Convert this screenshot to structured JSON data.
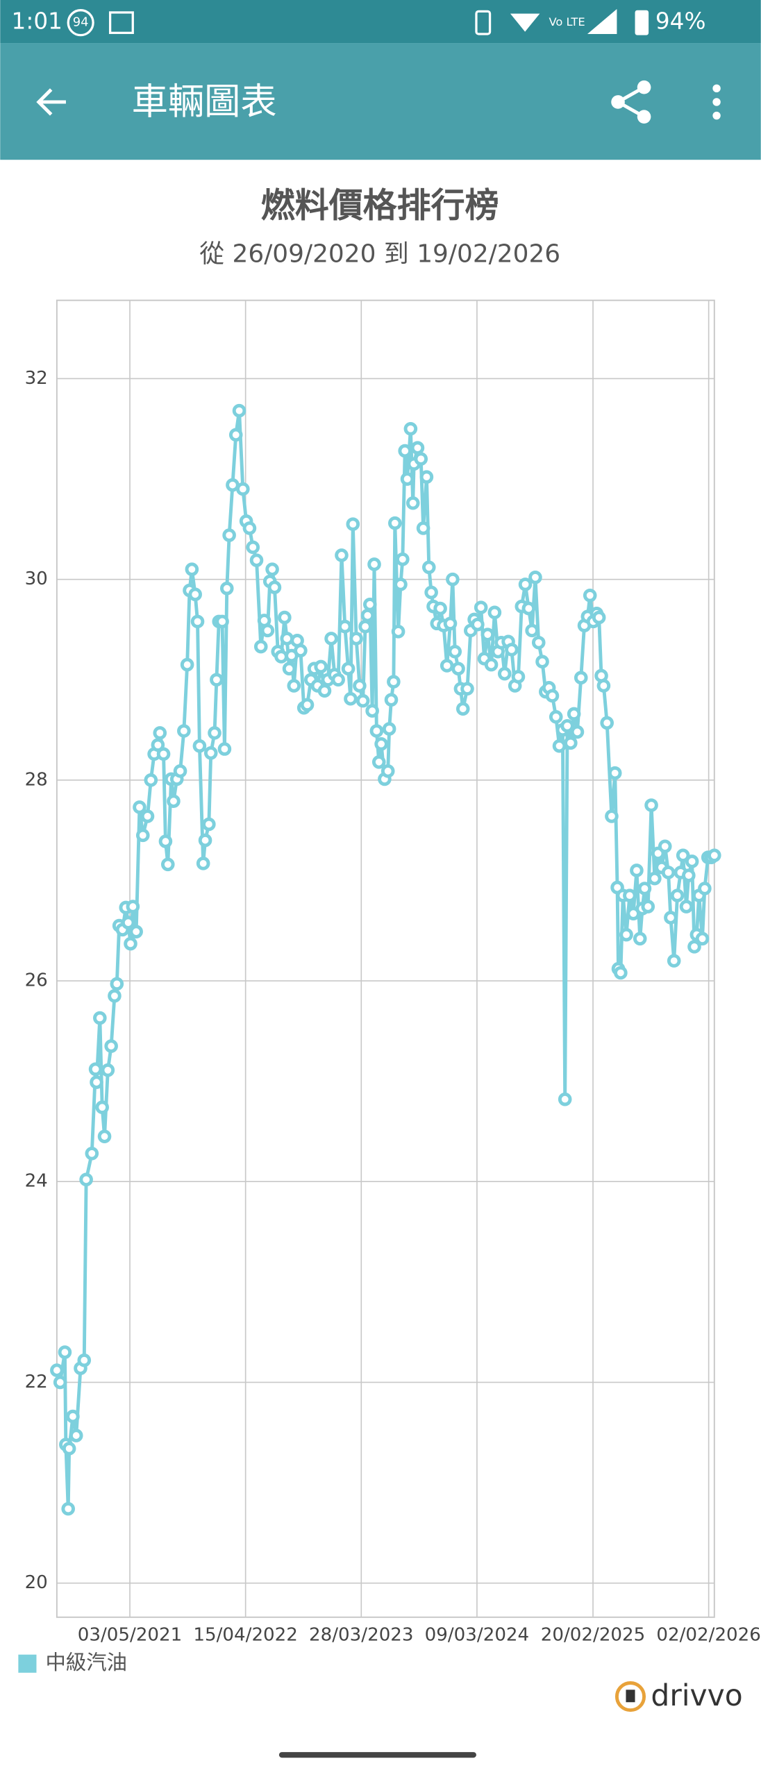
{
  "status_bar": {
    "time": "1:01",
    "badge": "94",
    "network": "Vo LTE",
    "battery": "94%"
  },
  "app_bar": {
    "title": "車輛圖表"
  },
  "brand": "drivvo",
  "chart_data": {
    "type": "line",
    "title": "燃料價格排行榜",
    "subtitle": "從 26/09/2020 到 19/02/2026",
    "x": [
      "26/09/2020",
      "06/10/2020",
      "20/10/2020",
      "23/10/2020",
      "30/10/2020",
      "02/11/2020",
      "13/11/2020",
      "23/11/2020",
      "06/12/2020",
      "17/12/2020",
      "23/12/2020",
      "09/01/2021",
      "20/01/2021",
      "23/01/2021",
      "02/02/2021",
      "09/02/2021",
      "16/02/2021",
      "26/02/2021",
      "08/03/2021",
      "18/03/2021",
      "25/03/2021",
      "01/04/2021",
      "11/04/2021",
      "21/04/2021",
      "28/04/2021",
      "05/05/2021",
      "12/05/2021",
      "22/05/2021",
      "01/06/2021",
      "11/06/2021",
      "25/06/2021",
      "05/07/2021",
      "15/07/2021",
      "26/07/2021",
      "01/08/2021",
      "12/08/2021",
      "18/08/2021",
      "25/08/2021",
      "04/09/2021",
      "11/09/2021",
      "21/09/2021",
      "01/10/2021",
      "12/10/2021",
      "22/10/2021",
      "29/10/2021",
      "05/11/2021",
      "15/11/2021",
      "22/11/2021",
      "28/11/2021",
      "09/12/2021",
      "15/12/2021",
      "26/12/2021",
      "01/01/2022",
      "12/01/2022",
      "18/01/2022",
      "25/01/2022",
      "04/02/2022",
      "11/02/2022",
      "18/02/2022",
      "25/02/2022",
      "07/03/2022",
      "17/03/2022",
      "27/03/2022",
      "07/04/2022",
      "17/04/2022",
      "27/04/2022",
      "07/05/2022",
      "18/05/2022",
      "31/05/2022",
      "10/06/2022",
      "20/06/2022",
      "27/06/2022",
      "04/07/2022",
      "11/07/2022",
      "21/07/2022",
      "31/07/2022",
      "10/08/2022",
      "17/08/2022",
      "24/08/2022",
      "31/08/2022",
      "07/09/2022",
      "17/09/2022",
      "27/09/2022",
      "07/10/2022",
      "17/10/2022",
      "28/10/2022",
      "07/11/2022",
      "17/11/2022",
      "27/11/2022",
      "08/12/2022",
      "18/12/2022",
      "28/12/2022",
      "07/01/2023",
      "18/01/2023",
      "28/01/2023",
      "07/02/2023",
      "17/02/2023",
      "24/02/2023",
      "03/03/2023",
      "13/03/2023",
      "23/03/2023",
      "02/04/2023",
      "09/04/2023",
      "16/04/2023",
      "23/04/2023",
      "30/04/2023",
      "06/05/2023",
      "13/05/2023",
      "20/05/2023",
      "27/05/2023",
      "06/06/2023",
      "16/06/2023",
      "20/06/2023",
      "26/06/2023",
      "03/07/2023",
      "07/07/2023",
      "17/07/2023",
      "24/07/2023",
      "30/07/2023",
      "06/08/2023",
      "13/08/2023",
      "23/08/2023",
      "30/08/2023",
      "02/09/2023",
      "13/09/2023",
      "23/09/2023",
      "30/09/2023",
      "10/10/2023",
      "17/10/2023",
      "24/10/2023",
      "30/10/2023",
      "10/11/2023",
      "20/11/2023",
      "30/11/2023",
      "10/12/2023",
      "20/12/2023",
      "27/12/2023",
      "03/01/2024",
      "13/01/2024",
      "20/01/2024",
      "27/01/2024",
      "09/02/2024",
      "19/02/2024",
      "01/03/2024",
      "11/03/2024",
      "21/03/2024",
      "31/03/2024",
      "10/04/2024",
      "21/04/2024",
      "01/05/2024",
      "11/05/2024",
      "21/05/2024",
      "31/05/2024",
      "11/06/2024",
      "21/06/2024",
      "01/07/2024",
      "11/07/2024",
      "21/07/2024",
      "01/08/2024",
      "11/08/2024",
      "21/08/2024",
      "31/08/2024",
      "10/09/2024",
      "21/09/2024",
      "01/10/2024",
      "11/10/2024",
      "21/10/2024",
      "01/11/2024",
      "11/11/2024",
      "21/11/2024",
      "28/11/2024",
      "05/12/2024",
      "15/12/2024",
      "25/12/2024",
      "04/01/2025",
      "15/01/2025",
      "25/01/2025",
      "04/02/2025",
      "11/02/2025",
      "21/02/2025",
      "03/03/2025",
      "10/03/2025",
      "17/03/2025",
      "24/03/2025",
      "03/04/2025",
      "17/04/2025",
      "27/04/2025",
      "04/05/2025",
      "07/05/2025",
      "14/05/2025",
      "21/05/2025",
      "31/05/2025",
      "10/06/2025",
      "21/06/2025",
      "01/07/2025",
      "11/07/2025",
      "18/07/2025",
      "25/07/2025",
      "04/08/2025",
      "14/08/2025",
      "24/08/2025",
      "03/09/2025",
      "14/09/2025",
      "24/09/2025",
      "04/10/2025",
      "11/10/2025",
      "21/10/2025",
      "31/10/2025",
      "10/11/2025",
      "17/11/2025",
      "27/11/2025",
      "04/12/2025",
      "14/12/2025",
      "21/12/2025",
      "28/12/2025",
      "04/01/2026",
      "14/01/2026",
      "21/01/2026",
      "31/01/2026",
      "10/02/2026",
      "19/02/2026"
    ],
    "series": [
      {
        "name": "中級汽油",
        "color": "#7dd0dd",
        "values": [
          22.12,
          22.0,
          22.3,
          21.38,
          20.74,
          21.34,
          21.66,
          21.47,
          22.14,
          22.22,
          24.02,
          24.28,
          25.12,
          24.99,
          25.63,
          24.74,
          24.45,
          25.11,
          25.35,
          25.85,
          25.97,
          26.55,
          26.51,
          26.73,
          26.58,
          26.37,
          26.74,
          26.49,
          27.73,
          27.45,
          27.64,
          28.0,
          28.26,
          28.35,
          28.47,
          28.26,
          27.39,
          27.16,
          28.01,
          27.79,
          28.01,
          28.09,
          28.49,
          29.15,
          29.89,
          30.1,
          29.85,
          29.58,
          28.34,
          27.17,
          27.4,
          27.56,
          28.27,
          28.47,
          29.0,
          29.58,
          29.58,
          28.31,
          29.91,
          30.44,
          30.94,
          31.44,
          31.68,
          30.9,
          30.58,
          30.51,
          30.32,
          30.19,
          29.33,
          29.59,
          29.49,
          29.98,
          30.1,
          29.92,
          29.28,
          29.23,
          29.62,
          29.41,
          29.11,
          29.24,
          28.94,
          29.39,
          29.29,
          28.72,
          28.75,
          29.0,
          29.11,
          28.94,
          29.13,
          28.89,
          29.0,
          29.41,
          29.05,
          29.0,
          30.24,
          29.53,
          29.11,
          28.81,
          30.55,
          29.41,
          28.94,
          28.79,
          29.53,
          29.64,
          29.75,
          28.69,
          30.15,
          28.49,
          28.18,
          28.36,
          28.01,
          28.09,
          28.51,
          28.8,
          28.98,
          30.56,
          29.48,
          29.95,
          30.2,
          31.28,
          31.0,
          31.5,
          30.76,
          31.15,
          31.31,
          31.2,
          30.51,
          31.02,
          30.12,
          29.87,
          29.73,
          29.56,
          29.71,
          29.54,
          29.14,
          29.56,
          30.0,
          29.28,
          29.11,
          28.91,
          28.71,
          28.91,
          29.49,
          29.6,
          29.55,
          29.72,
          29.21,
          29.45,
          29.15,
          29.67,
          29.28,
          29.37,
          29.06,
          29.38,
          29.3,
          28.94,
          29.03,
          29.73,
          29.95,
          29.71,
          29.49,
          30.02,
          29.37,
          29.18,
          28.88,
          28.92,
          28.84,
          28.63,
          28.34,
          28.5,
          24.82,
          28.54,
          28.37,
          28.66,
          28.48,
          29.02,
          29.54,
          29.63,
          29.84,
          29.58,
          29.66,
          29.62,
          29.04,
          28.94,
          28.57,
          27.64,
          28.07,
          26.93,
          26.12,
          26.08,
          26.85,
          26.46,
          26.85,
          26.67,
          27.1,
          26.42,
          26.72,
          26.92,
          26.74,
          27.75,
          27.02,
          27.27,
          27.13,
          27.34,
          27.08,
          26.63,
          26.2,
          26.85,
          27.08,
          27.25,
          26.74,
          27.05,
          27.19,
          26.34,
          26.46,
          26.85,
          26.42,
          26.92,
          27.23,
          27.23,
          27.25
        ]
      }
    ],
    "xlim": [
      "26/09/2020",
      "19/02/2026"
    ],
    "xticks": [
      "03/05/2021",
      "15/04/2022",
      "28/03/2023",
      "09/03/2024",
      "20/02/2025",
      "02/02/2026"
    ],
    "ylim": [
      19.66,
      32.78
    ],
    "yticks": [
      20,
      22,
      24,
      26,
      28,
      30,
      32
    ],
    "grid": true,
    "legend": "bottom-left"
  }
}
